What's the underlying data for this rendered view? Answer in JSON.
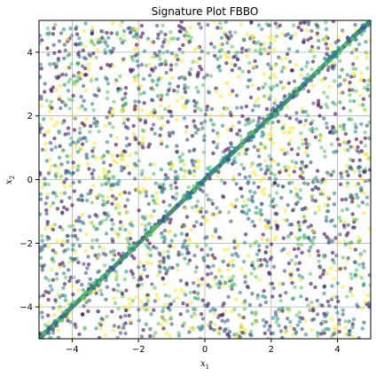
{
  "chart_data": {
    "type": "scatter",
    "title": "Signature Plot FBBO",
    "xlabel": "x",
    "xlabel_sub": "1",
    "ylabel": "x",
    "ylabel_sub": "2",
    "xlim": [
      -5,
      5
    ],
    "ylim": [
      -5,
      5
    ],
    "x_ticks": [
      -4,
      -2,
      0,
      2,
      4
    ],
    "y_ticks": [
      -4,
      -2,
      0,
      2,
      4
    ],
    "x_tick_labels": [
      "−4",
      "−2",
      "0",
      "2",
      "4"
    ],
    "y_tick_labels": [
      "−4",
      "−2",
      "0",
      "2",
      "4"
    ],
    "grid": true,
    "colormap": [
      "#440154",
      "#3b528b",
      "#21918c",
      "#5ec962",
      "#fde725"
    ],
    "diagonal_color": "#2a7d6e",
    "diagonal_line": {
      "x": [
        -5,
        5
      ],
      "y": [
        -5,
        5
      ]
    },
    "scatter_point_count": 2600
  }
}
